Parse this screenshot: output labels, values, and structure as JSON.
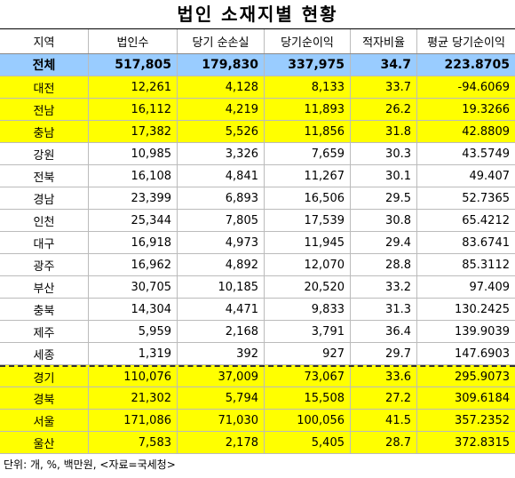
{
  "title": "법인 소재지별 현황",
  "table": {
    "header": [
      "지역",
      "법인수",
      "당기 순손실",
      "당기순이익",
      "적자비율",
      "평균 당기순이익"
    ],
    "rows": [
      [
        "전체",
        "517,805",
        "179,830",
        "337,975",
        "34.7",
        "223.8705"
      ],
      [
        "대전",
        "12,261",
        "4,128",
        "8,133",
        "33.7",
        "-94.6069"
      ],
      [
        "전남",
        "16,112",
        "4,219",
        "11,893",
        "26.2",
        "19.3266"
      ],
      [
        "충남",
        "17,382",
        "5,526",
        "11,856",
        "31.8",
        "42.8809"
      ],
      [
        "강원",
        "10,985",
        "3,326",
        "7,659",
        "30.3",
        "43.5749"
      ],
      [
        "전북",
        "16,108",
        "4,841",
        "11,267",
        "30.1",
        "49.407"
      ],
      [
        "경남",
        "23,399",
        "6,893",
        "16,506",
        "29.5",
        "52.7365"
      ],
      [
        "인천",
        "25,344",
        "7,805",
        "17,539",
        "30.8",
        "65.4212"
      ],
      [
        "대구",
        "16,918",
        "4,973",
        "11,945",
        "29.4",
        "83.6741"
      ],
      [
        "광주",
        "16,962",
        "4,892",
        "12,070",
        "28.8",
        "85.3112"
      ],
      [
        "부산",
        "30,705",
        "10,185",
        "20,520",
        "33.2",
        "97.409"
      ],
      [
        "충북",
        "14,304",
        "4,471",
        "9,833",
        "31.3",
        "130.2425"
      ],
      [
        "제주",
        "5,959",
        "2,168",
        "3,791",
        "36.4",
        "139.9039"
      ],
      [
        "세종",
        "1,319",
        "392",
        "927",
        "29.7",
        "147.6903"
      ],
      [
        "경기",
        "110,076",
        "37,009",
        "73,067",
        "33.6",
        "295.9073"
      ],
      [
        "경북",
        "21,302",
        "5,794",
        "15,508",
        "27.2",
        "309.6184"
      ],
      [
        "서울",
        "171,086",
        "71,030",
        "100,056",
        "41.5",
        "357.2352"
      ],
      [
        "울산",
        "7,583",
        "2,178",
        "5,405",
        "28.7",
        "372.8315"
      ]
    ]
  },
  "footer": "단위: 개, %, 백만원, <자료=국세청>"
}
